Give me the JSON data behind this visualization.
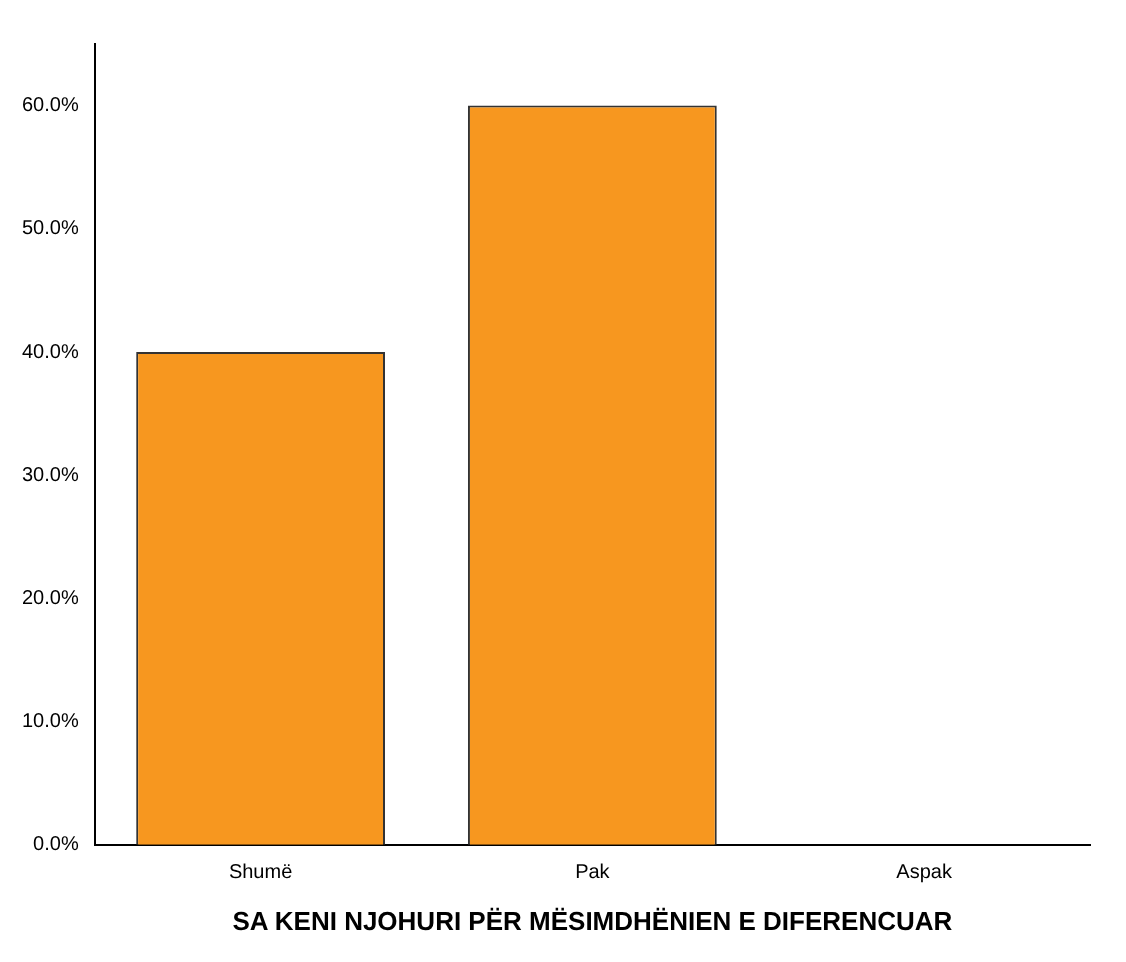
{
  "chart_data": {
    "type": "bar",
    "xlabel": "SA KENI NJOHURI PËR MËSIMDHËNIEN E DIFERENCUAR",
    "categories": [
      "Shumë",
      "Pak",
      "Aspak"
    ],
    "values": [
      40,
      60,
      0
    ],
    "color": "#f7971f",
    "ylim": [
      0,
      65
    ],
    "yticks": [
      {
        "value": 0,
        "label": "0.0%"
      },
      {
        "value": 10,
        "label": "10.0%"
      },
      {
        "value": 20,
        "label": "20.0%"
      },
      {
        "value": 30,
        "label": "30.0%"
      },
      {
        "value": 40,
        "label": "40.0%"
      },
      {
        "value": 50,
        "label": "50.0%"
      },
      {
        "value": 60,
        "label": "60.0%"
      }
    ],
    "grid": false,
    "legend": false
  }
}
